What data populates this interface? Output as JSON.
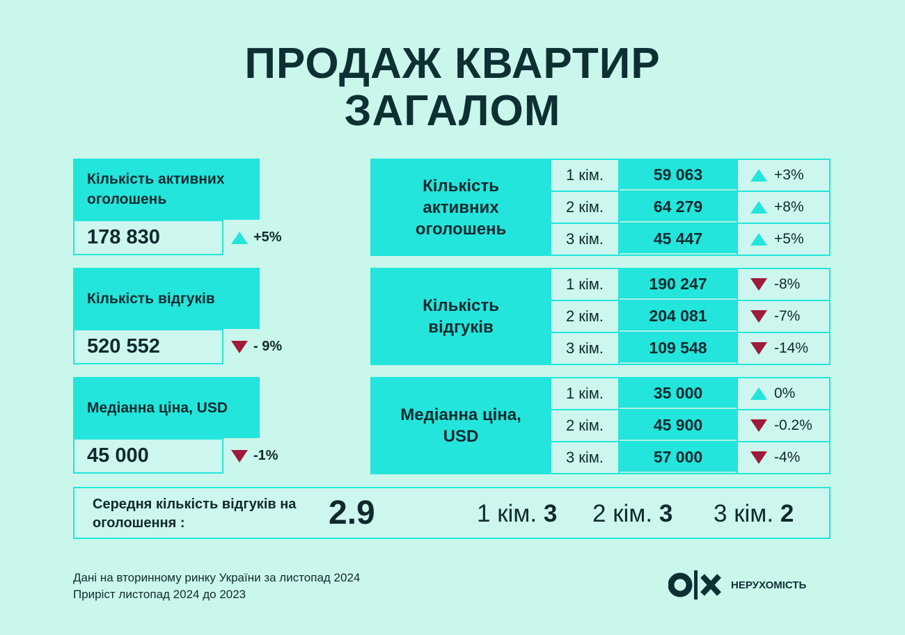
{
  "title": {
    "line1": "ПРОДАЖ КВАРТИР",
    "line2": "ЗАГАЛОМ"
  },
  "colors": {
    "background": "#caf7ec",
    "accent": "#23e5db",
    "text": "#10292e",
    "down": "#9e1b3a"
  },
  "summary": [
    {
      "label": "Кількість активних оголошень",
      "value": "178 830",
      "change": "+5%",
      "direction": "up"
    },
    {
      "label": "Кількість відгуків",
      "value": "520 552",
      "change": "- 9%",
      "direction": "down"
    },
    {
      "label": "Медіанна ціна, USD",
      "value": "45 000",
      "change": "-1%",
      "direction": "down"
    }
  ],
  "tables": [
    {
      "label": "Кількість активних оголошень",
      "rows": [
        {
          "room": "1 кім.",
          "value": "59 063",
          "change": "+3%",
          "direction": "up"
        },
        {
          "room": "2 кім.",
          "value": "64 279",
          "change": "+8%",
          "direction": "up"
        },
        {
          "room": "3 кім.",
          "value": "45 447",
          "change": "+5%",
          "direction": "up"
        }
      ]
    },
    {
      "label": "Кількість відгуків",
      "rows": [
        {
          "room": "1 кім.",
          "value": "190 247",
          "change": "-8%",
          "direction": "down"
        },
        {
          "room": "2 кім.",
          "value": "204 081",
          "change": "-7%",
          "direction": "down"
        },
        {
          "room": "3 кім.",
          "value": "109 548",
          "change": "-14%",
          "direction": "down"
        }
      ]
    },
    {
      "label": "Медіанна ціна, USD",
      "rows": [
        {
          "room": "1 кім.",
          "value": "35 000",
          "change": "0%",
          "direction": "up"
        },
        {
          "room": "2 кім.",
          "value": "45 900",
          "change": "-0.2%",
          "direction": "down"
        },
        {
          "room": "3 кім.",
          "value": "57 000",
          "change": "-4%",
          "direction": "down"
        }
      ]
    }
  ],
  "average": {
    "label": "Середня кількість відгуків на оголошення :",
    "value": "2.9",
    "items": [
      {
        "room": "1 кім.",
        "value": "3"
      },
      {
        "room": "2 кім.",
        "value": "3"
      },
      {
        "room": "3 кім.",
        "value": "2"
      }
    ]
  },
  "footer": {
    "line1": "Дані на вторинному ринку України за листопад 2024",
    "line2": "Приріст листопад 2024 до 2023"
  },
  "logo": {
    "brand": "OLX",
    "subtitle": "НЕРУХОМІСТЬ"
  }
}
